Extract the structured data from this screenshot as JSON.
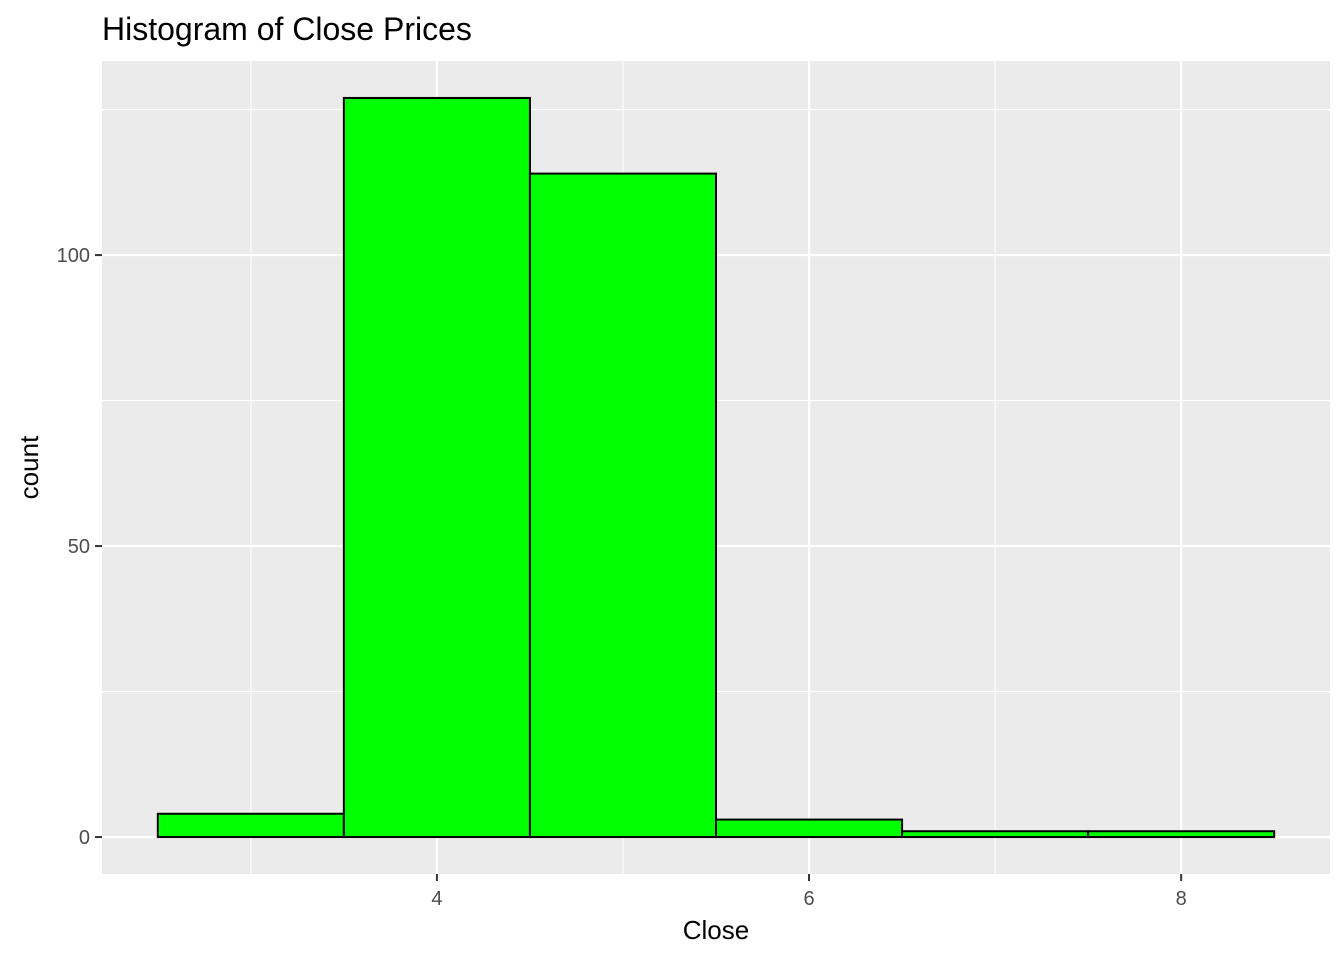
{
  "chart_data": {
    "type": "bar",
    "histogram": true,
    "title": "Histogram of Close Prices",
    "xlabel": "Close",
    "ylabel": "count",
    "bins": [
      {
        "start": 2.5,
        "end": 3.5,
        "count": 4
      },
      {
        "start": 3.5,
        "end": 4.5,
        "count": 127
      },
      {
        "start": 4.5,
        "end": 5.5,
        "count": 114
      },
      {
        "start": 5.5,
        "end": 6.5,
        "count": 3
      },
      {
        "start": 6.5,
        "end": 7.5,
        "count": 1
      },
      {
        "start": 7.5,
        "end": 8.5,
        "count": 1
      }
    ],
    "xlim": [
      2.2,
      8.8
    ],
    "ylim": [
      -6.35,
      133.35
    ],
    "x_ticks": [
      4,
      6,
      8
    ],
    "x_tick_labels": [
      "4",
      "6",
      "8"
    ],
    "y_ticks": [
      0,
      50,
      100
    ],
    "y_tick_labels": [
      "0",
      "50",
      "100"
    ],
    "grid": true,
    "legend": "none",
    "colors": {
      "bar_fill": "#00ff00",
      "bar_outline": "#000000",
      "panel_background": "#ebebeb",
      "grid_major": "#ffffff",
      "grid_minor": "#ffffff",
      "tick_text": "#4d4d4d",
      "tick_mark": "#333333"
    }
  }
}
